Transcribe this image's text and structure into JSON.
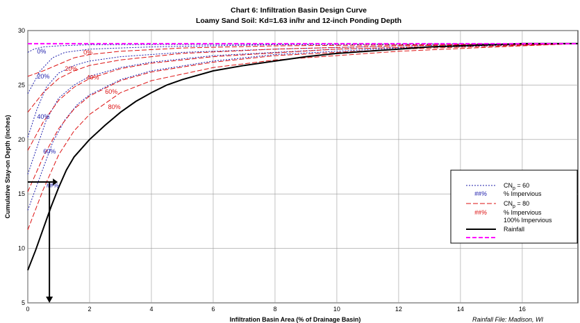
{
  "chart_data": {
    "type": "line",
    "title": "Chart 6: Infiltration Basin Design Curve",
    "subtitle": "Loamy Sand Soil: Kd=1.63 in/hr and 12-inch Ponding Depth",
    "xlabel": "Infiltration Basin Area (% of Drainage Basin)",
    "ylabel": "Cumulative Stay-on Depth (inches)",
    "xlim": [
      0,
      17.8
    ],
    "ylim": [
      5,
      30
    ],
    "x_ticks": [
      "0",
      "2",
      "4",
      "6",
      "8",
      "10",
      "12",
      "14",
      "16"
    ],
    "y_ticks": [
      "5",
      "10",
      "15",
      "20",
      "25",
      "30"
    ],
    "grid": true,
    "legend_position": "right",
    "source_note": "Rainfall File: Madison, WI",
    "colors": {
      "cn60": "#1a1aaa",
      "cn80": "#dd1111",
      "impervious": "#000000",
      "rainfall": "#ff00ff"
    },
    "rainfall_depth": 28.8,
    "series": [
      {
        "group": "cn60",
        "label": "0%",
        "points": [
          [
            0,
            28.0
          ],
          [
            0.2,
            28.3
          ],
          [
            0.5,
            28.5
          ],
          [
            1,
            28.6
          ],
          [
            2,
            28.7
          ],
          [
            17.8,
            28.8
          ]
        ]
      },
      {
        "group": "cn60",
        "label": "20%",
        "points": [
          [
            0,
            24.2
          ],
          [
            0.4,
            26.3
          ],
          [
            0.8,
            27.5
          ],
          [
            1.2,
            28.0
          ],
          [
            2,
            28.3
          ],
          [
            4,
            28.5
          ],
          [
            8,
            28.7
          ],
          [
            17.8,
            28.8
          ]
        ]
      },
      {
        "group": "cn60",
        "label": "40%",
        "points": [
          [
            0,
            20.2
          ],
          [
            0.3,
            22.8
          ],
          [
            0.6,
            24.8
          ],
          [
            1,
            26.1
          ],
          [
            1.5,
            26.8
          ],
          [
            2,
            27.2
          ],
          [
            3,
            27.6
          ],
          [
            5,
            28.0
          ],
          [
            8,
            28.3
          ],
          [
            12,
            28.6
          ],
          [
            17.8,
            28.8
          ]
        ]
      },
      {
        "group": "cn60",
        "label": "60%",
        "points": [
          [
            0,
            16.8
          ],
          [
            0.3,
            19.3
          ],
          [
            0.6,
            21.8
          ],
          [
            1,
            23.8
          ],
          [
            1.5,
            25.0
          ],
          [
            2,
            25.8
          ],
          [
            3,
            26.6
          ],
          [
            4,
            27.1
          ],
          [
            6,
            27.7
          ],
          [
            10,
            28.3
          ],
          [
            14,
            28.6
          ],
          [
            17.8,
            28.8
          ]
        ]
      },
      {
        "group": "cn60",
        "label": "80%",
        "points": [
          [
            0,
            13.5
          ],
          [
            0.4,
            16.6
          ],
          [
            0.8,
            19.7
          ],
          [
            1.2,
            21.8
          ],
          [
            1.6,
            23.2
          ],
          [
            2,
            24.1
          ],
          [
            3,
            25.5
          ],
          [
            4,
            26.3
          ],
          [
            6,
            27.2
          ],
          [
            8,
            27.8
          ],
          [
            12,
            28.4
          ],
          [
            17.8,
            28.8
          ]
        ]
      },
      {
        "group": "cn80",
        "label": "0%",
        "points": [
          [
            0,
            25.8
          ],
          [
            0.5,
            26.3
          ],
          [
            1,
            26.9
          ],
          [
            1.5,
            27.5
          ],
          [
            2,
            27.8
          ],
          [
            3,
            28.1
          ],
          [
            5,
            28.4
          ],
          [
            8,
            28.6
          ],
          [
            17.8,
            28.8
          ]
        ]
      },
      {
        "group": "cn80",
        "label": "20%",
        "points": [
          [
            0,
            22.5
          ],
          [
            0.5,
            24.3
          ],
          [
            1,
            25.6
          ],
          [
            1.5,
            26.3
          ],
          [
            2,
            26.8
          ],
          [
            3,
            27.3
          ],
          [
            5,
            27.9
          ],
          [
            8,
            28.3
          ],
          [
            12,
            28.6
          ],
          [
            17.8,
            28.8
          ]
        ]
      },
      {
        "group": "cn80",
        "label": "40%",
        "points": [
          [
            0,
            19.0
          ],
          [
            0.5,
            21.6
          ],
          [
            1,
            23.6
          ],
          [
            1.5,
            24.8
          ],
          [
            2,
            25.6
          ],
          [
            3,
            26.5
          ],
          [
            4,
            27.0
          ],
          [
            6,
            27.6
          ],
          [
            10,
            28.3
          ],
          [
            14,
            28.6
          ],
          [
            17.8,
            28.8
          ]
        ]
      },
      {
        "group": "cn80",
        "label": "60%",
        "points": [
          [
            0,
            15.2
          ],
          [
            0.5,
            18.4
          ],
          [
            1,
            21.0
          ],
          [
            1.5,
            22.8
          ],
          [
            2,
            24.0
          ],
          [
            3,
            25.4
          ],
          [
            4,
            26.2
          ],
          [
            6,
            27.1
          ],
          [
            8,
            27.7
          ],
          [
            12,
            28.3
          ],
          [
            17.8,
            28.8
          ]
        ]
      },
      {
        "group": "cn80",
        "label": "80%",
        "points": [
          [
            0,
            11.7
          ],
          [
            0.5,
            15.4
          ],
          [
            1,
            18.6
          ],
          [
            1.5,
            20.8
          ],
          [
            2,
            22.3
          ],
          [
            3,
            24.3
          ],
          [
            4,
            25.4
          ],
          [
            6,
            26.6
          ],
          [
            8,
            27.3
          ],
          [
            12,
            28.1
          ],
          [
            16,
            28.6
          ],
          [
            17.8,
            28.8
          ]
        ]
      },
      {
        "group": "impervious",
        "label": "",
        "points": [
          [
            0,
            8.0
          ],
          [
            0.25,
            9.8
          ],
          [
            0.5,
            11.8
          ],
          [
            0.75,
            13.8
          ],
          [
            1,
            15.6
          ],
          [
            1.25,
            17.2
          ],
          [
            1.5,
            18.4
          ],
          [
            2,
            20.0
          ],
          [
            2.5,
            21.3
          ],
          [
            3,
            22.5
          ],
          [
            3.5,
            23.5
          ],
          [
            4,
            24.3
          ],
          [
            4.5,
            25.0
          ],
          [
            5,
            25.5
          ],
          [
            6,
            26.3
          ],
          [
            7,
            26.8
          ],
          [
            8,
            27.2
          ],
          [
            9,
            27.6
          ],
          [
            10,
            27.9
          ],
          [
            11,
            28.1
          ],
          [
            12,
            28.3
          ],
          [
            13,
            28.5
          ],
          [
            14,
            28.6
          ],
          [
            15,
            28.7
          ],
          [
            16,
            28.8
          ],
          [
            17.8,
            28.8
          ]
        ]
      }
    ],
    "curve_labels": [
      {
        "group": "cn60",
        "text": "0%",
        "x": 0.3,
        "y": 27.9
      },
      {
        "group": "cn60",
        "text": "20%",
        "x": 0.3,
        "y": 25.6
      },
      {
        "group": "cn60",
        "text": "40%",
        "x": 0.3,
        "y": 21.9
      },
      {
        "group": "cn60",
        "text": "60%",
        "x": 0.5,
        "y": 18.7
      },
      {
        "group": "cn60",
        "text": "##%",
        "x": 0.6,
        "y": 15.6
      },
      {
        "group": "cn80",
        "text": "0%",
        "x": 1.8,
        "y": 27.8
      },
      {
        "group": "cn80",
        "text": "20%",
        "x": 1.2,
        "y": 26.3
      },
      {
        "group": "cn80",
        "text": "40%",
        "x": 1.9,
        "y": 25.5
      },
      {
        "group": "cn80",
        "text": "60%",
        "x": 2.5,
        "y": 24.2
      },
      {
        "group": "cn80",
        "text": "80%",
        "x": 2.6,
        "y": 22.8
      }
    ],
    "example_arrow": {
      "x_start": 0,
      "y_level": 16.1,
      "x_drop": 0.7,
      "y_end": 5
    },
    "legend": {
      "items": [
        {
          "style": "cn60",
          "line1": "CN",
          "sub": "p",
          "line2": " = 60"
        },
        {
          "style": "pct-blue",
          "pct": "##%",
          "text": "% Impervious"
        },
        {
          "style": "cn80",
          "line1": "CN",
          "sub": "p",
          "line2": " = 80"
        },
        {
          "style": "pct-red",
          "pct": "##%",
          "text": "% Impervious"
        },
        {
          "style": "none",
          "text": "100% Impervious"
        },
        {
          "style": "impervious",
          "text": "Rainfall"
        },
        {
          "style": "rainfall",
          "text": ""
        }
      ]
    }
  }
}
